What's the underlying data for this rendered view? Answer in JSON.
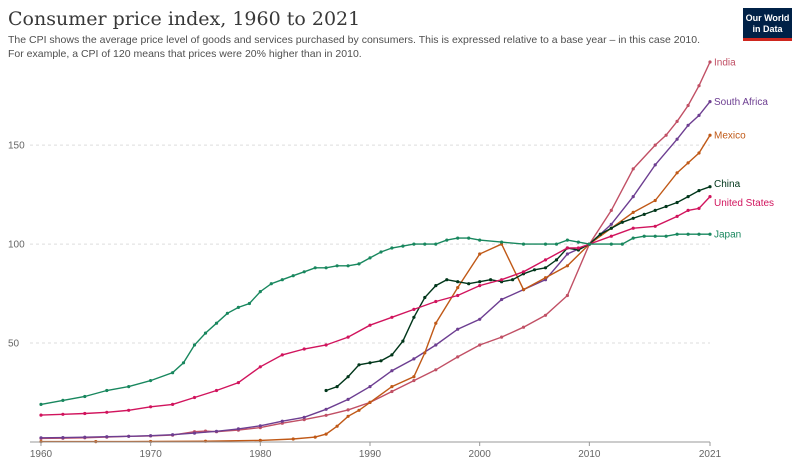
{
  "header": {
    "title": "Consumer price index, 1960 to 2021",
    "subtitle": "The CPI shows the average price level of goods and services purchased by consumers. This is expressed relative to a base year – in this case 2010. For example, a CPI of 120 means that prices were 20% higher than in 2010.",
    "logo_line1": "Our World",
    "logo_line2": "in Data"
  },
  "chart_data": {
    "type": "line",
    "title": "Consumer price index, 1960 to 2021",
    "xlim": [
      1959,
      2021
    ],
    "ylim": [
      0,
      193
    ],
    "x_ticks": [
      "1960",
      "1970",
      "1980",
      "1990",
      "2000",
      "2010",
      "2021"
    ],
    "x_tick_values": [
      1960,
      1970,
      1980,
      1990,
      2000,
      2010,
      2021
    ],
    "y_ticks": [
      "50",
      "100",
      "150"
    ],
    "y_tick_values": [
      50,
      100,
      150
    ],
    "grid": "horizontal dashed",
    "legend": "labels at line ends (right)",
    "series": [
      {
        "name": "India",
        "color": "#c15065",
        "points": [
          [
            1960,
            1.8
          ],
          [
            1962,
            1.9
          ],
          [
            1964,
            2.1
          ],
          [
            1966,
            2.5
          ],
          [
            1968,
            2.9
          ],
          [
            1970,
            3.1
          ],
          [
            1972,
            3.5
          ],
          [
            1974,
            5.2
          ],
          [
            1975,
            5.5
          ],
          [
            1976,
            5.2
          ],
          [
            1978,
            6
          ],
          [
            1980,
            7.3
          ],
          [
            1982,
            9.5
          ],
          [
            1984,
            11.3
          ],
          [
            1986,
            13.5
          ],
          [
            1988,
            16.2
          ],
          [
            1990,
            20
          ],
          [
            1992,
            25.5
          ],
          [
            1994,
            31
          ],
          [
            1996,
            36.5
          ],
          [
            1998,
            43
          ],
          [
            2000,
            49
          ],
          [
            2002,
            53
          ],
          [
            2004,
            58
          ],
          [
            2006,
            64
          ],
          [
            2008,
            74
          ],
          [
            2010,
            100
          ],
          [
            2012,
            117
          ],
          [
            2014,
            138
          ],
          [
            2016,
            150
          ],
          [
            2017,
            155
          ],
          [
            2018,
            162
          ],
          [
            2019,
            170
          ],
          [
            2020,
            180
          ],
          [
            2021,
            192
          ]
        ]
      },
      {
        "name": "South Africa",
        "color": "#6d3e91",
        "points": [
          [
            1960,
            2.1
          ],
          [
            1962,
            2.2
          ],
          [
            1964,
            2.4
          ],
          [
            1966,
            2.7
          ],
          [
            1968,
            2.9
          ],
          [
            1970,
            3.2
          ],
          [
            1972,
            3.7
          ],
          [
            1974,
            4.5
          ],
          [
            1976,
            5.4
          ],
          [
            1978,
            6.6
          ],
          [
            1980,
            8.2
          ],
          [
            1982,
            10.5
          ],
          [
            1984,
            12.5
          ],
          [
            1986,
            16.5
          ],
          [
            1988,
            21.5
          ],
          [
            1990,
            28
          ],
          [
            1992,
            36
          ],
          [
            1994,
            42
          ],
          [
            1996,
            49
          ],
          [
            1998,
            57
          ],
          [
            2000,
            62
          ],
          [
            2002,
            72
          ],
          [
            2004,
            77
          ],
          [
            2006,
            82
          ],
          [
            2008,
            95
          ],
          [
            2010,
            100
          ],
          [
            2012,
            110
          ],
          [
            2014,
            124
          ],
          [
            2016,
            140
          ],
          [
            2018,
            153
          ],
          [
            2019,
            160
          ],
          [
            2020,
            165
          ],
          [
            2021,
            172
          ]
        ]
      },
      {
        "name": "Mexico",
        "color": "#c05917",
        "points": [
          [
            1960,
            0.2
          ],
          [
            1965,
            0.2
          ],
          [
            1970,
            0.25
          ],
          [
            1975,
            0.4
          ],
          [
            1980,
            0.8
          ],
          [
            1983,
            1.5
          ],
          [
            1985,
            2.5
          ],
          [
            1986,
            4
          ],
          [
            1987,
            8
          ],
          [
            1988,
            13
          ],
          [
            1989,
            16
          ],
          [
            1990,
            20
          ],
          [
            1992,
            28
          ],
          [
            1994,
            33
          ],
          [
            1995,
            45
          ],
          [
            1996,
            60
          ],
          [
            1998,
            78
          ],
          [
            2000,
            95
          ],
          [
            2002,
            100
          ],
          [
            2004,
            77
          ],
          [
            2006,
            83
          ],
          [
            2008,
            89
          ],
          [
            2010,
            100
          ],
          [
            2012,
            108
          ],
          [
            2014,
            116
          ],
          [
            2016,
            122
          ],
          [
            2018,
            136
          ],
          [
            2019,
            141
          ],
          [
            2020,
            146
          ],
          [
            2021,
            155
          ]
        ]
      },
      {
        "name": "China",
        "color": "#00361a",
        "points": [
          [
            1986,
            26
          ],
          [
            1987,
            28
          ],
          [
            1988,
            33
          ],
          [
            1989,
            39
          ],
          [
            1990,
            40
          ],
          [
            1991,
            41
          ],
          [
            1992,
            44
          ],
          [
            1993,
            51
          ],
          [
            1994,
            63
          ],
          [
            1995,
            73
          ],
          [
            1996,
            79
          ],
          [
            1997,
            82
          ],
          [
            1998,
            81
          ],
          [
            1999,
            80
          ],
          [
            2000,
            81
          ],
          [
            2001,
            82
          ],
          [
            2002,
            81
          ],
          [
            2003,
            82
          ],
          [
            2004,
            85
          ],
          [
            2005,
            87
          ],
          [
            2006,
            88
          ],
          [
            2007,
            92
          ],
          [
            2008,
            98
          ],
          [
            2009,
            97
          ],
          [
            2010,
            100
          ],
          [
            2011,
            105
          ],
          [
            2012,
            108
          ],
          [
            2013,
            111
          ],
          [
            2014,
            113
          ],
          [
            2015,
            115
          ],
          [
            2016,
            117
          ],
          [
            2017,
            119
          ],
          [
            2018,
            121
          ],
          [
            2019,
            124
          ],
          [
            2020,
            127
          ],
          [
            2021,
            129
          ]
        ]
      },
      {
        "name": "United States",
        "color": "#d1145d",
        "points": [
          [
            1960,
            13.6
          ],
          [
            1962,
            14
          ],
          [
            1964,
            14.4
          ],
          [
            1966,
            15
          ],
          [
            1968,
            16
          ],
          [
            1970,
            17.8
          ],
          [
            1972,
            19
          ],
          [
            1974,
            22.5
          ],
          [
            1976,
            26
          ],
          [
            1978,
            30
          ],
          [
            1980,
            38
          ],
          [
            1982,
            44
          ],
          [
            1984,
            47
          ],
          [
            1986,
            49
          ],
          [
            1988,
            53
          ],
          [
            1990,
            59
          ],
          [
            1992,
            63
          ],
          [
            1994,
            67
          ],
          [
            1996,
            71
          ],
          [
            1998,
            74
          ],
          [
            2000,
            79
          ],
          [
            2002,
            82
          ],
          [
            2004,
            86
          ],
          [
            2006,
            92
          ],
          [
            2008,
            98
          ],
          [
            2009,
            98
          ],
          [
            2010,
            100
          ],
          [
            2012,
            104
          ],
          [
            2014,
            108
          ],
          [
            2016,
            109
          ],
          [
            2018,
            114
          ],
          [
            2019,
            117
          ],
          [
            2020,
            118
          ],
          [
            2021,
            124
          ]
        ]
      },
      {
        "name": "Japan",
        "color": "#18875e",
        "points": [
          [
            1960,
            19
          ],
          [
            1962,
            21
          ],
          [
            1964,
            23
          ],
          [
            1966,
            26
          ],
          [
            1968,
            28
          ],
          [
            1970,
            31
          ],
          [
            1972,
            35
          ],
          [
            1973,
            40
          ],
          [
            1974,
            49
          ],
          [
            1975,
            55
          ],
          [
            1976,
            60
          ],
          [
            1977,
            65
          ],
          [
            1978,
            68
          ],
          [
            1979,
            70
          ],
          [
            1980,
            76
          ],
          [
            1981,
            80
          ],
          [
            1982,
            82
          ],
          [
            1983,
            84
          ],
          [
            1984,
            86
          ],
          [
            1985,
            88
          ],
          [
            1986,
            88
          ],
          [
            1987,
            89
          ],
          [
            1988,
            89
          ],
          [
            1989,
            90
          ],
          [
            1990,
            93
          ],
          [
            1991,
            96
          ],
          [
            1992,
            98
          ],
          [
            1993,
            99
          ],
          [
            1994,
            100
          ],
          [
            1995,
            100
          ],
          [
            1996,
            100
          ],
          [
            1997,
            102
          ],
          [
            1998,
            103
          ],
          [
            1999,
            103
          ],
          [
            2000,
            102
          ],
          [
            2002,
            101
          ],
          [
            2004,
            100
          ],
          [
            2006,
            100
          ],
          [
            2007,
            100
          ],
          [
            2008,
            102
          ],
          [
            2009,
            101
          ],
          [
            2010,
            100
          ],
          [
            2012,
            100
          ],
          [
            2013,
            100
          ],
          [
            2014,
            103
          ],
          [
            2015,
            104
          ],
          [
            2016,
            104
          ],
          [
            2017,
            104
          ],
          [
            2018,
            105
          ],
          [
            2019,
            105
          ],
          [
            2020,
            105
          ],
          [
            2021,
            105
          ]
        ]
      }
    ]
  }
}
